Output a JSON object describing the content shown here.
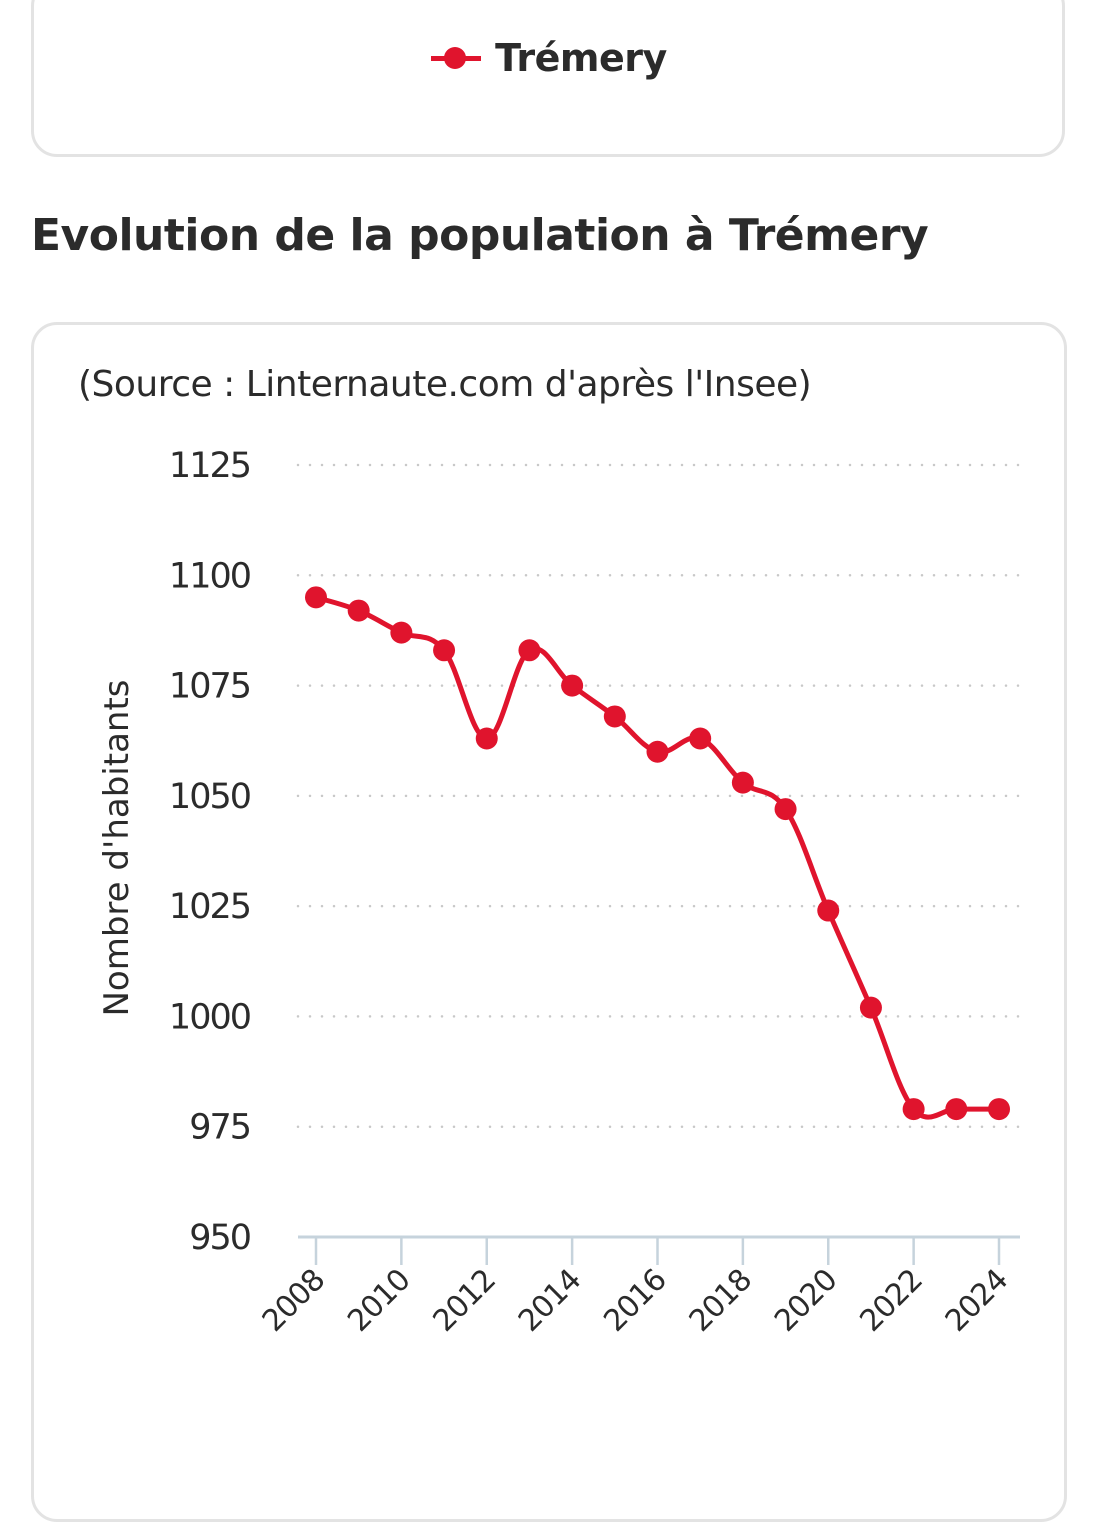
{
  "legend": {
    "series_label": "Trémery",
    "series_color": "#e0142d"
  },
  "section": {
    "title": "Evolution de la population à Trémery"
  },
  "chart_data": {
    "type": "line",
    "title": "Evolution de la population à Trémery",
    "subtitle": "(Source : Linternaute.com d'après l'Insee)",
    "xlabel": "",
    "ylabel": "Nombre d'habitants",
    "x": [
      2008,
      2009,
      2010,
      2011,
      2012,
      2013,
      2014,
      2015,
      2016,
      2017,
      2018,
      2019,
      2020,
      2021,
      2022,
      2023,
      2024
    ],
    "x_ticks": [
      "2008",
      "2010",
      "2012",
      "2014",
      "2016",
      "2018",
      "2020",
      "2022",
      "2024"
    ],
    "y_ticks": [
      "950",
      "975",
      "1000",
      "1025",
      "1050",
      "1075",
      "1100",
      "1125"
    ],
    "ylim": [
      950,
      1125
    ],
    "xlim": [
      2008,
      2024
    ],
    "grid": true,
    "legend_position": "top-center",
    "series": [
      {
        "name": "Trémery",
        "color": "#e0142d",
        "values": [
          1095,
          1092,
          1087,
          1083,
          1063,
          1083,
          1075,
          1068,
          1060,
          1063,
          1053,
          1047,
          1024,
          1002,
          979,
          979,
          979
        ]
      }
    ]
  }
}
